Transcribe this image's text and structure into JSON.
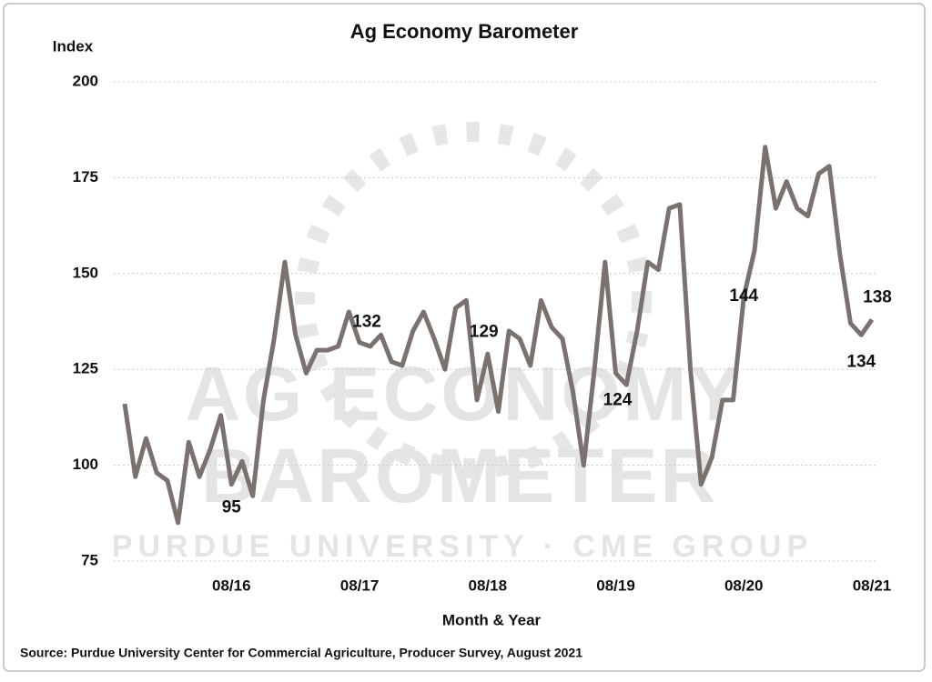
{
  "chart_data": {
    "type": "line",
    "title": "Ag Economy Barometer",
    "y_label": "Index",
    "x_label": "Month & Year",
    "source": "Source: Purdue University Center for Commercial Agriculture, Producer Survey, August 2021",
    "watermark": [
      "AG ECONOMY",
      "BAROMETER",
      "PURDUE UNIVERSITY · CME GROUP"
    ],
    "categories": [
      null,
      null,
      null,
      null,
      null,
      null,
      null,
      null,
      null,
      null,
      "08/16",
      null,
      null,
      null,
      null,
      null,
      null,
      null,
      null,
      null,
      null,
      null,
      "08/17",
      null,
      null,
      null,
      null,
      null,
      null,
      null,
      null,
      null,
      null,
      null,
      "08/18",
      null,
      null,
      null,
      null,
      null,
      null,
      null,
      null,
      null,
      null,
      null,
      "08/19",
      null,
      null,
      null,
      null,
      null,
      null,
      null,
      null,
      null,
      null,
      null,
      "08/20",
      null,
      null,
      null,
      null,
      null,
      null,
      null,
      null,
      null,
      null,
      null,
      "08/21"
    ],
    "series": [
      {
        "name": "Ag Economy Barometer",
        "color": "#7a726e",
        "values": [
          116,
          97,
          107,
          98,
          96,
          85,
          106,
          97,
          104,
          113,
          95,
          101,
          92,
          117,
          133,
          153,
          134,
          124,
          130,
          130,
          131,
          140,
          132,
          131,
          134,
          127,
          126,
          135,
          140,
          133,
          125,
          141,
          143,
          117,
          129,
          114,
          135,
          133,
          126,
          143,
          136,
          133,
          119,
          100,
          125,
          153,
          124,
          121,
          135,
          153,
          151,
          167,
          168,
          125,
          95,
          102,
          117,
          117,
          144,
          156,
          183,
          167,
          174,
          167,
          165,
          176,
          178,
          155,
          137,
          134,
          138
        ],
        "value_labels": [
          null,
          null,
          null,
          null,
          null,
          null,
          null,
          null,
          null,
          null,
          "95",
          null,
          null,
          null,
          null,
          null,
          null,
          null,
          null,
          null,
          null,
          null,
          "132",
          null,
          null,
          null,
          null,
          null,
          null,
          null,
          null,
          null,
          null,
          null,
          "129",
          null,
          null,
          null,
          null,
          null,
          null,
          null,
          null,
          null,
          null,
          null,
          "124",
          null,
          null,
          null,
          null,
          null,
          null,
          null,
          null,
          null,
          null,
          null,
          "144",
          null,
          null,
          null,
          null,
          null,
          null,
          null,
          null,
          null,
          null,
          "134",
          "138"
        ]
      }
    ],
    "ylim": [
      75,
      200
    ],
    "yticks": [
      75,
      100,
      125,
      150,
      175,
      200
    ],
    "grid": true
  }
}
